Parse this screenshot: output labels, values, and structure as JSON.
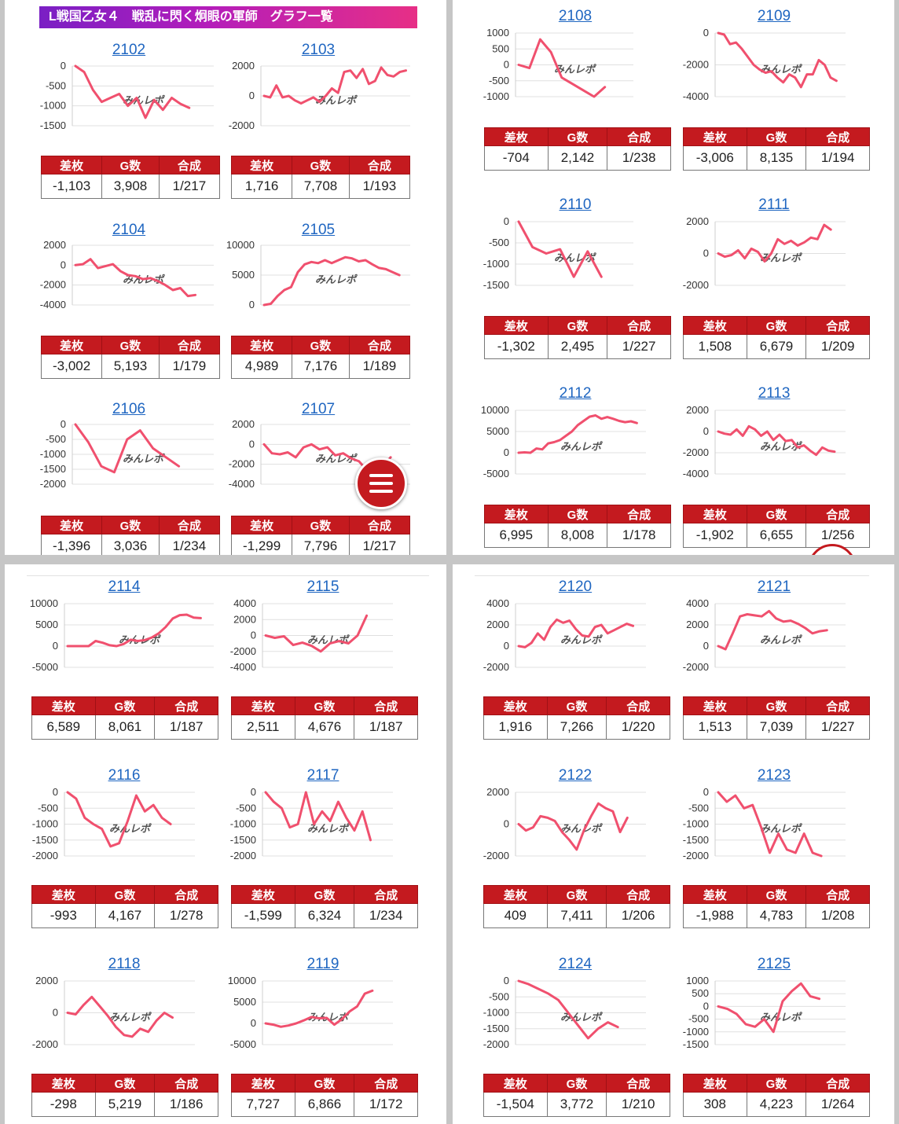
{
  "header": {
    "title": "L戦国乙女４　戦乱に閃く炯眼の軍師　グラフ一覧"
  },
  "watermark": "みんレポ",
  "columns": {
    "diff": "差枚",
    "games": "G数",
    "ratio": "合成"
  },
  "colors": {
    "line": "#f0506e",
    "header_red": "#c41a1f",
    "link": "#1f66c1",
    "banner_start": "#7a1fc4",
    "banner_end": "#e72f86"
  },
  "icons": {
    "menu": "hamburger-menu-icon"
  },
  "machines": [
    {
      "id": "2102",
      "diff": "-1,103",
      "games": "3,908",
      "ratio": "1/217",
      "chart_data": {
        "type": "line",
        "yticks": [
          "0",
          "-500",
          "-1000",
          "-1500"
        ],
        "ylim": [
          -1500,
          0
        ],
        "values": [
          0,
          -150,
          -600,
          -900,
          -800,
          -700,
          -1000,
          -800,
          -1300,
          -850,
          -1100,
          -800,
          -950,
          -1050
        ]
      }
    },
    {
      "id": "2103",
      "diff": "1,716",
      "games": "7,708",
      "ratio": "1/193",
      "chart_data": {
        "type": "line",
        "yticks": [
          "2000",
          "0",
          "-2000"
        ],
        "ylim": [
          -2000,
          2000
        ],
        "values": [
          0,
          -100,
          700,
          -100,
          0,
          -300,
          -500,
          -300,
          -100,
          -400,
          0,
          500,
          200,
          1600,
          1700,
          1200,
          1800,
          800,
          1000,
          1900,
          1400,
          1300,
          1600,
          1700
        ]
      }
    },
    {
      "id": "2104",
      "diff": "-3,002",
      "games": "5,193",
      "ratio": "1/179",
      "chart_data": {
        "type": "line",
        "yticks": [
          "2000",
          "0",
          "-2000",
          "-4000"
        ],
        "ylim": [
          -4000,
          2000
        ],
        "values": [
          0,
          100,
          600,
          -300,
          -100,
          100,
          -600,
          -1000,
          -1100,
          -1400,
          -1300,
          -1600,
          -2000,
          -2500,
          -2300,
          -3100,
          -3000
        ]
      }
    },
    {
      "id": "2105",
      "diff": "4,989",
      "games": "7,176",
      "ratio": "1/189",
      "chart_data": {
        "type": "line",
        "yticks": [
          "10000",
          "5000",
          "0"
        ],
        "ylim": [
          0,
          10000
        ],
        "values": [
          0,
          200,
          1500,
          2500,
          3000,
          5500,
          6800,
          7200,
          7000,
          7500,
          7000,
          7500,
          8000,
          7800,
          7300,
          7500,
          6800,
          6200,
          6000,
          5500,
          5000
        ]
      }
    },
    {
      "id": "2106",
      "diff": "-1,396",
      "games": "3,036",
      "ratio": "1/234",
      "chart_data": {
        "type": "line",
        "yticks": [
          "0",
          "-500",
          "-1000",
          "-1500",
          "-2000"
        ],
        "ylim": [
          -2000,
          0
        ],
        "values": [
          0,
          -600,
          -1400,
          -1600,
          -500,
          -200,
          -800,
          -1100,
          -1400
        ]
      }
    },
    {
      "id": "2107",
      "diff": "-1,299",
      "games": "7,796",
      "ratio": "1/217",
      "chart_data": {
        "type": "line",
        "yticks": [
          "2000",
          "0",
          "-2000",
          "-4000"
        ],
        "ylim": [
          -4000,
          2000
        ],
        "values": [
          0,
          -900,
          -1000,
          -800,
          -1300,
          -300,
          0,
          -500,
          -300,
          -1100,
          -900,
          -1400,
          -1700,
          -2600,
          -1800,
          -2200,
          -1300
        ]
      }
    },
    {
      "id": "2108",
      "diff": "-704",
      "games": "2,142",
      "ratio": "1/238",
      "chart_data": {
        "type": "line",
        "yticks": [
          "1000",
          "500",
          "0",
          "-500",
          "-1000"
        ],
        "ylim": [
          -1000,
          1000
        ],
        "values": [
          0,
          -100,
          800,
          400,
          -400,
          -600,
          -800,
          -1000,
          -700
        ]
      }
    },
    {
      "id": "2109",
      "diff": "-3,006",
      "games": "8,135",
      "ratio": "1/194",
      "chart_data": {
        "type": "line",
        "yticks": [
          "0",
          "-2000",
          "-4000"
        ],
        "ylim": [
          -4000,
          0
        ],
        "values": [
          0,
          -100,
          -700,
          -600,
          -1000,
          -1500,
          -2000,
          -2300,
          -2500,
          -2400,
          -2800,
          -3100,
          -2600,
          -2800,
          -3400,
          -2600,
          -2600,
          -1700,
          -2000,
          -2800,
          -3000
        ]
      }
    },
    {
      "id": "2110",
      "diff": "-1,302",
      "games": "2,495",
      "ratio": "1/227",
      "chart_data": {
        "type": "line",
        "yticks": [
          "0",
          "-500",
          "-1000",
          "-1500"
        ],
        "ylim": [
          -1500,
          0
        ],
        "values": [
          0,
          -600,
          -750,
          -650,
          -1300,
          -700,
          -1300
        ]
      }
    },
    {
      "id": "2111",
      "diff": "1,508",
      "games": "6,679",
      "ratio": "1/209",
      "chart_data": {
        "type": "line",
        "yticks": [
          "2000",
          "0",
          "-2000"
        ],
        "ylim": [
          -2000,
          2000
        ],
        "values": [
          0,
          -200,
          -100,
          200,
          -300,
          300,
          100,
          -500,
          0,
          900,
          600,
          800,
          500,
          700,
          1000,
          900,
          1800,
          1500
        ]
      }
    },
    {
      "id": "2112",
      "diff": "6,995",
      "games": "8,008",
      "ratio": "1/178",
      "chart_data": {
        "type": "line",
        "yticks": [
          "10000",
          "5000",
          "0",
          "-5000"
        ],
        "ylim": [
          -5000,
          10000
        ],
        "values": [
          0,
          100,
          0,
          1000,
          800,
          2200,
          2500,
          3000,
          4000,
          5000,
          6500,
          7500,
          8500,
          8800,
          8000,
          8400,
          8000,
          7500,
          7200,
          7400,
          7000
        ]
      }
    },
    {
      "id": "2113",
      "diff": "-1,902",
      "games": "6,655",
      "ratio": "1/256",
      "chart_data": {
        "type": "line",
        "yticks": [
          "2000",
          "0",
          "-2000",
          "-4000"
        ],
        "ylim": [
          -4000,
          2000
        ],
        "values": [
          0,
          -200,
          -300,
          200,
          -400,
          500,
          200,
          -400,
          0,
          -800,
          -300,
          -900,
          -800,
          -1500,
          -1300,
          -1800,
          -2200,
          -1500,
          -1800,
          -1900
        ]
      }
    },
    {
      "id": "2114",
      "diff": "6,589",
      "games": "8,061",
      "ratio": "1/187",
      "chart_data": {
        "type": "line",
        "yticks": [
          "10000",
          "5000",
          "0",
          "-5000"
        ],
        "ylim": [
          -5000,
          10000
        ],
        "values": [
          0,
          0,
          0,
          0,
          1200,
          800,
          200,
          0,
          500,
          1500,
          1200,
          1400,
          2000,
          3000,
          4500,
          6500,
          7300,
          7400,
          6700,
          6600
        ]
      }
    },
    {
      "id": "2115",
      "diff": "2,511",
      "games": "4,676",
      "ratio": "1/187",
      "chart_data": {
        "type": "line",
        "yticks": [
          "4000",
          "2000",
          "0",
          "-2000",
          "-4000"
        ],
        "ylim": [
          -4000,
          4000
        ],
        "values": [
          0,
          -300,
          -100,
          -1200,
          -900,
          -1300,
          -2000,
          -1000,
          -700,
          -1000,
          0,
          2500
        ]
      }
    },
    {
      "id": "2116",
      "diff": "-993",
      "games": "4,167",
      "ratio": "1/278",
      "chart_data": {
        "type": "line",
        "yticks": [
          "0",
          "-500",
          "-1000",
          "-1500",
          "-2000"
        ],
        "ylim": [
          -2000,
          0
        ],
        "values": [
          0,
          -200,
          -800,
          -1000,
          -1150,
          -1700,
          -1600,
          -900,
          -100,
          -600,
          -400,
          -800,
          -1000
        ]
      }
    },
    {
      "id": "2117",
      "diff": "-1,599",
      "games": "6,324",
      "ratio": "1/234",
      "chart_data": {
        "type": "line",
        "yticks": [
          "0",
          "-500",
          "-1000",
          "-1500",
          "-2000"
        ],
        "ylim": [
          -2000,
          0
        ],
        "values": [
          0,
          -300,
          -500,
          -1100,
          -1000,
          0,
          -1000,
          -600,
          -900,
          -300,
          -800,
          -1200,
          -600,
          -1500
        ]
      }
    },
    {
      "id": "2118",
      "diff": "-298",
      "games": "5,219",
      "ratio": "1/186",
      "chart_data": {
        "type": "line",
        "yticks": [
          "2000",
          "0",
          "-2000"
        ],
        "ylim": [
          -2000,
          2000
        ],
        "values": [
          0,
          -100,
          500,
          1000,
          400,
          -200,
          -900,
          -1400,
          -1500,
          -1000,
          -1200,
          -500,
          0,
          -300
        ]
      }
    },
    {
      "id": "2119",
      "diff": "7,727",
      "games": "6,866",
      "ratio": "1/172",
      "chart_data": {
        "type": "line",
        "yticks": [
          "10000",
          "5000",
          "0",
          "-5000"
        ],
        "ylim": [
          -5000,
          10000
        ],
        "values": [
          0,
          -300,
          -800,
          -500,
          0,
          700,
          1500,
          1200,
          1300,
          -300,
          1000,
          2800,
          4000,
          7000,
          7700
        ]
      }
    },
    {
      "id": "2120",
      "diff": "1,916",
      "games": "7,266",
      "ratio": "1/220",
      "chart_data": {
        "type": "line",
        "yticks": [
          "4000",
          "2000",
          "0",
          "-2000"
        ],
        "ylim": [
          -2000,
          4000
        ],
        "values": [
          0,
          -100,
          300,
          1200,
          600,
          1800,
          2500,
          2200,
          2400,
          1600,
          1000,
          900,
          1800,
          2000,
          1200,
          1500,
          1800,
          2100,
          1900
        ]
      }
    },
    {
      "id": "2121",
      "diff": "1,513",
      "games": "7,039",
      "ratio": "1/227",
      "chart_data": {
        "type": "line",
        "yticks": [
          "4000",
          "2000",
          "0",
          "-2000"
        ],
        "ylim": [
          -2000,
          4000
        ],
        "values": [
          0,
          -300,
          1200,
          2800,
          3000,
          2900,
          2800,
          3300,
          2600,
          2300,
          2400,
          2100,
          1700,
          1200,
          1400,
          1500
        ]
      }
    },
    {
      "id": "2122",
      "diff": "409",
      "games": "7,411",
      "ratio": "1/206",
      "chart_data": {
        "type": "line",
        "yticks": [
          "2000",
          "0",
          "-2000"
        ],
        "ylim": [
          -2000,
          2000
        ],
        "values": [
          0,
          -400,
          -200,
          500,
          400,
          200,
          -500,
          -1000,
          -1600,
          -400,
          500,
          1300,
          1000,
          800,
          -500,
          400
        ]
      }
    },
    {
      "id": "2123",
      "diff": "-1,988",
      "games": "4,783",
      "ratio": "1/208",
      "chart_data": {
        "type": "line",
        "yticks": [
          "0",
          "-500",
          "-1000",
          "-1500",
          "-2000"
        ],
        "ylim": [
          -2000,
          0
        ],
        "values": [
          0,
          -300,
          -100,
          -500,
          -400,
          -1100,
          -1900,
          -1300,
          -1800,
          -1900,
          -1300,
          -1900,
          -2000
        ]
      }
    },
    {
      "id": "2124",
      "diff": "-1,504",
      "games": "3,772",
      "ratio": "1/210",
      "chart_data": {
        "type": "line",
        "yticks": [
          "0",
          "-500",
          "-1000",
          "-1500",
          "-2000"
        ],
        "ylim": [
          -2000,
          0
        ],
        "values": [
          0,
          -100,
          -250,
          -400,
          -600,
          -1000,
          -1400,
          -1800,
          -1500,
          -1300,
          -1450
        ]
      }
    },
    {
      "id": "2125",
      "diff": "308",
      "games": "4,223",
      "ratio": "1/264",
      "chart_data": {
        "type": "line",
        "yticks": [
          "1000",
          "500",
          "0",
          "-500",
          "-1000",
          "-1500"
        ],
        "ylim": [
          -1500,
          1000
        ],
        "values": [
          0,
          -100,
          -300,
          -700,
          -800,
          -500,
          -1000,
          200,
          600,
          900,
          400,
          300
        ]
      }
    }
  ]
}
